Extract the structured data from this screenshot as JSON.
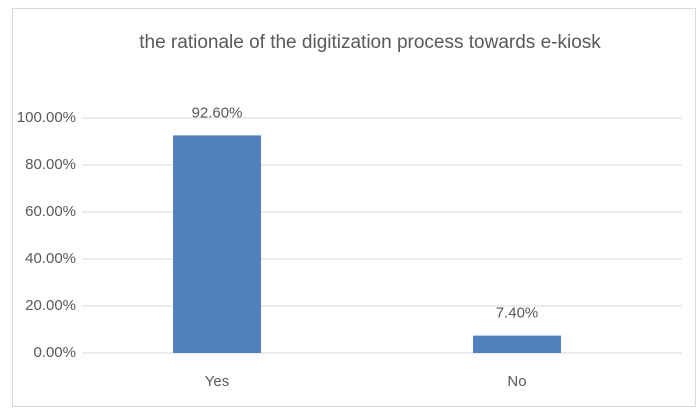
{
  "chart_data": {
    "type": "bar",
    "title": "the rationale of the digitization process towards e-kiosk",
    "categories": [
      "Yes",
      "No"
    ],
    "values": [
      92.6,
      7.4
    ],
    "value_labels": [
      "92.60%",
      "7.40%"
    ],
    "color": "#4f81bd",
    "ylim": [
      0,
      100
    ],
    "yticks": [
      {
        "value": 0,
        "label": "0.00%"
      },
      {
        "value": 20,
        "label": "20.00%"
      },
      {
        "value": 40,
        "label": "40.00%"
      },
      {
        "value": 60,
        "label": "60.00%"
      },
      {
        "value": 80,
        "label": "80.00%"
      },
      {
        "value": 100,
        "label": "100.00%"
      }
    ],
    "grid": true
  }
}
